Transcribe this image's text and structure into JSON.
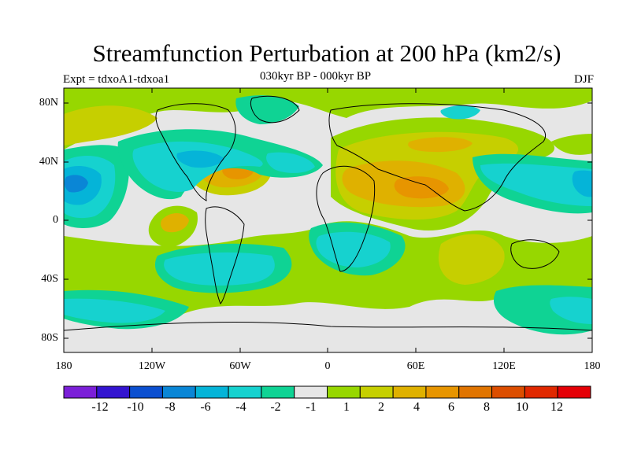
{
  "title": "Streamfunction Perturbation at 200 hPa (km2/s)",
  "experiment_label": "Expt = tdxoA1-tdxoa1",
  "period_label": "030kyr BP - 000kyr BP",
  "season_label": "DJF",
  "lat_ticks": [
    "80N",
    "40N",
    "0",
    "40S",
    "80S"
  ],
  "lon_ticks": [
    "180",
    "120W",
    "60W",
    "0",
    "60E",
    "120E",
    "180"
  ],
  "colorbar": {
    "colors": [
      "#7b1fd8",
      "#3314d0",
      "#0b4fd0",
      "#0a86d6",
      "#05b4d8",
      "#16d2cf",
      "#0fd394",
      "#e6e6e6",
      "#97d700",
      "#c6cf00",
      "#dfb100",
      "#e79500",
      "#e07400",
      "#dc4e00",
      "#e02800",
      "#e40006"
    ],
    "labels": [
      "-12",
      "-10",
      "-8",
      "-6",
      "-4",
      "-2",
      "-1",
      "1",
      "2",
      "4",
      "6",
      "8",
      "10",
      "12"
    ]
  },
  "anomalies": [
    {
      "lon": -150,
      "lat": 30,
      "value": -6
    },
    {
      "lon": -105,
      "lat": 35,
      "value": -2
    },
    {
      "lon": -60,
      "lat": 32,
      "value": 8
    },
    {
      "lon": -30,
      "lat": 40,
      "value": -4
    },
    {
      "lon": 60,
      "lat": 25,
      "value": 8
    },
    {
      "lon": 80,
      "lat": 55,
      "value": 6
    },
    {
      "lon": 130,
      "lat": 35,
      "value": -4
    },
    {
      "lon": 170,
      "lat": 25,
      "value": -6
    },
    {
      "lon": -60,
      "lat": -30,
      "value": -4
    },
    {
      "lon": 20,
      "lat": -30,
      "value": -4
    },
    {
      "lon": 75,
      "lat": -25,
      "value": 2
    },
    {
      "lon": -110,
      "lat": -60,
      "value": -4
    }
  ]
}
